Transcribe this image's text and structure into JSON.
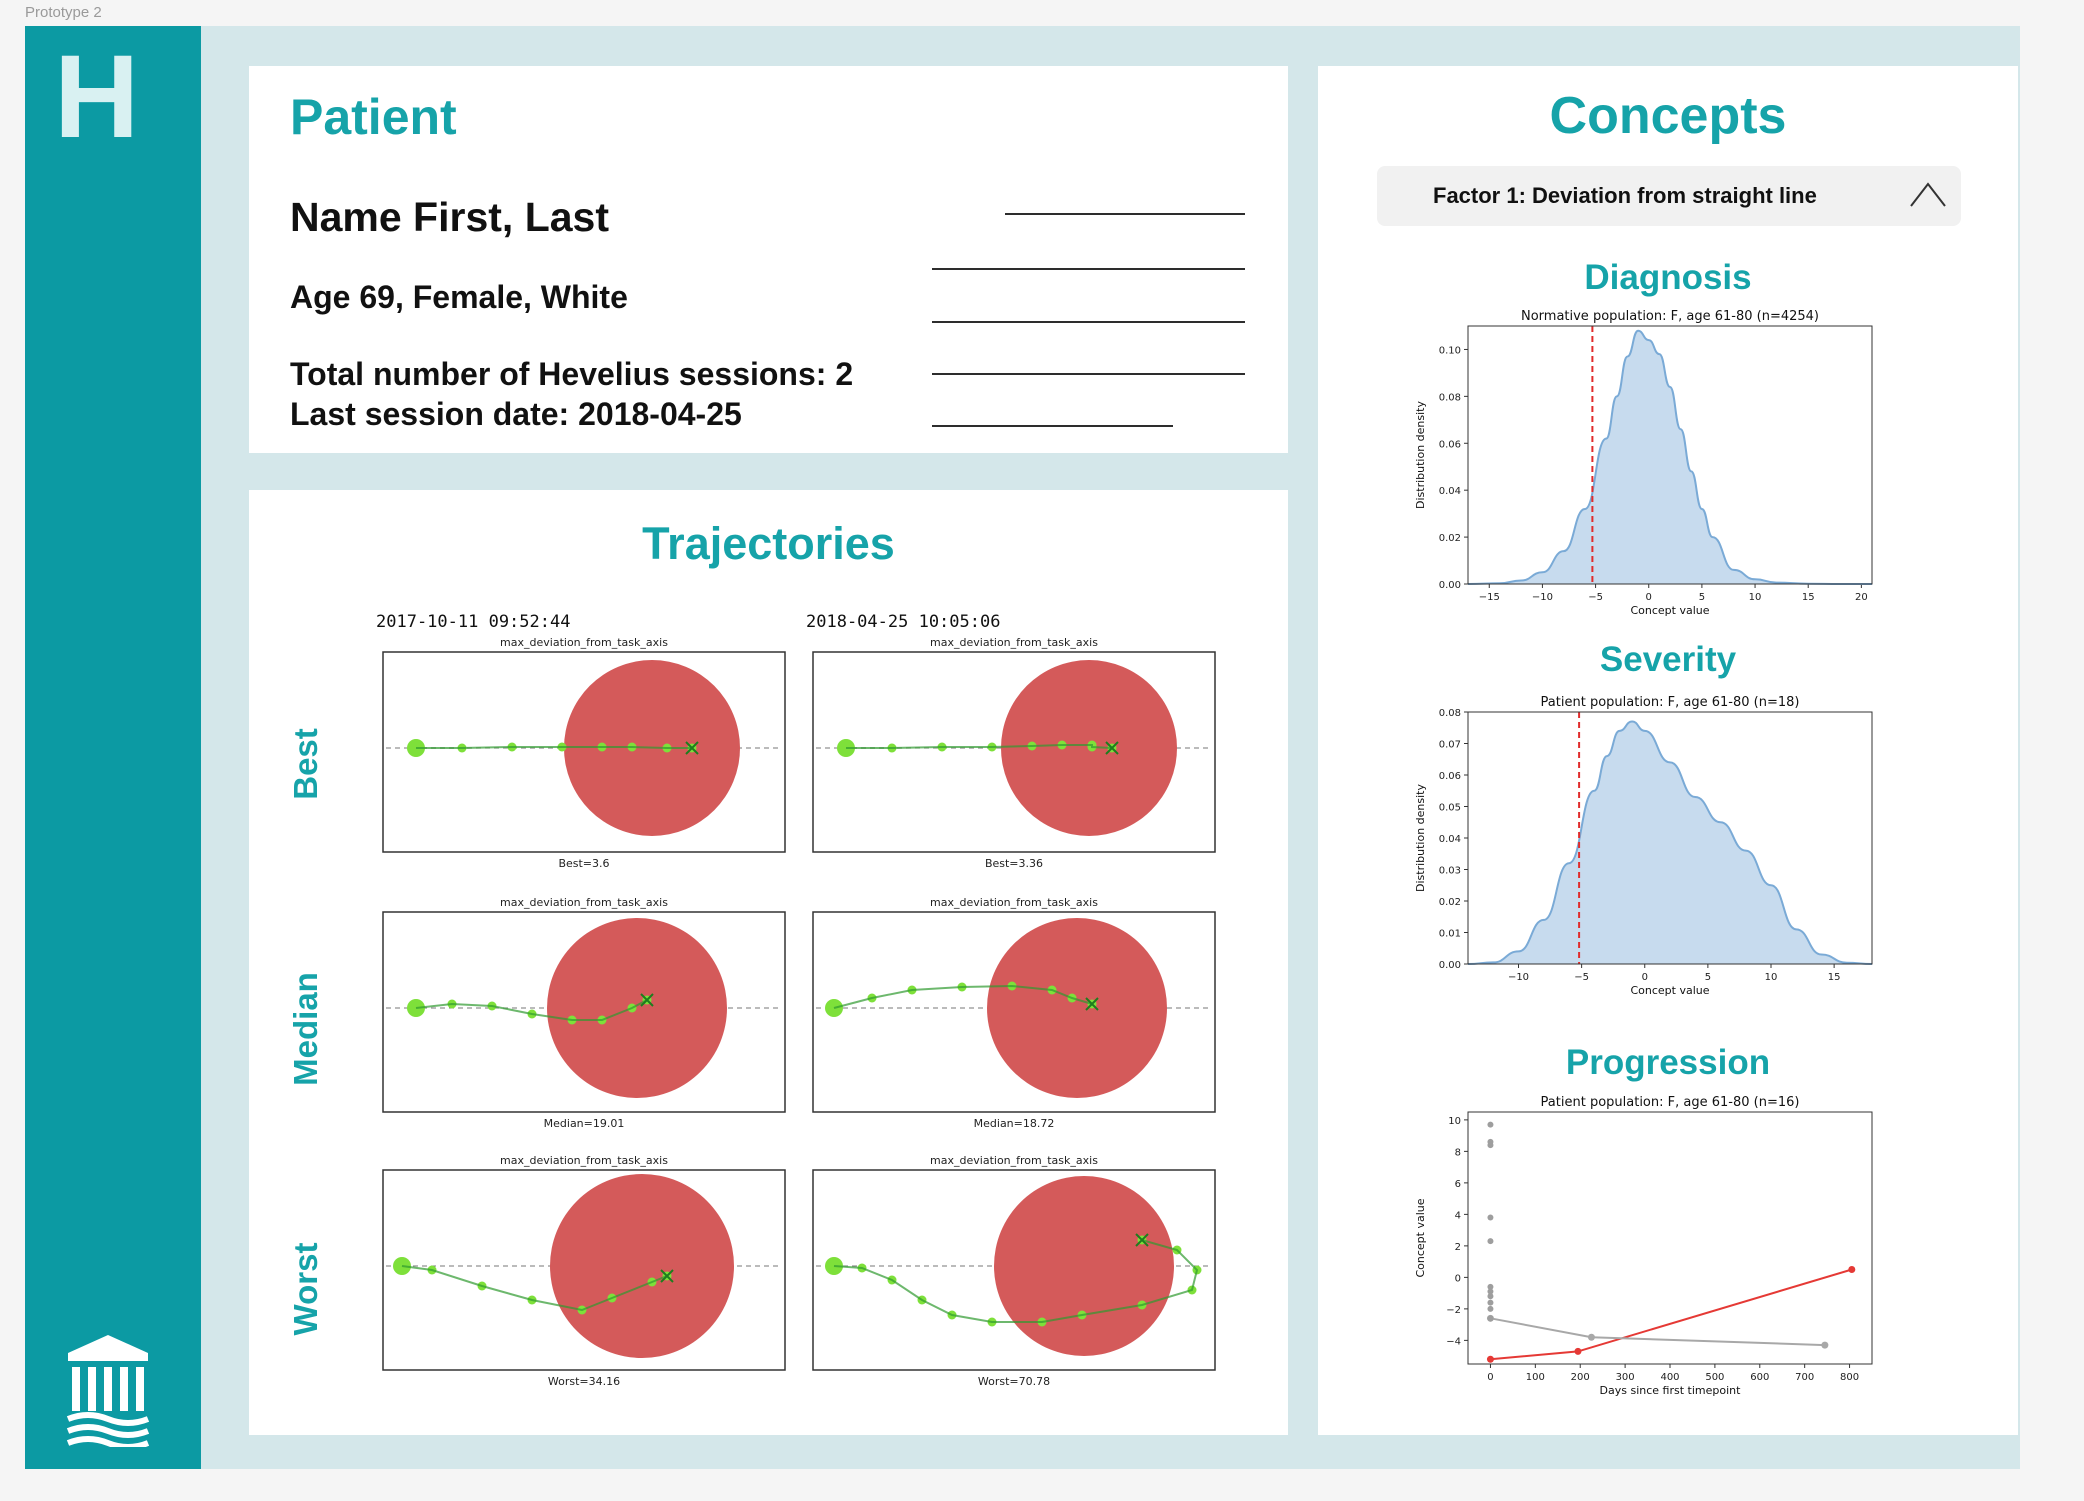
{
  "frame": {
    "label": "Prototype 2"
  },
  "brand": {
    "logo_letter": "H",
    "accent": "#0c9aa3",
    "title_color": "#16a3a9"
  },
  "patient": {
    "title": "Patient",
    "name": "Name First, Last",
    "demographics": "Age 69, Female, White",
    "sessions": "Total number of Hevelius sessions: 2",
    "last_session": "Last session date: 2018-04-25"
  },
  "trajectories": {
    "title": "Trajectories",
    "sessions": [
      "2017-10-11 09:52:44",
      "2018-04-25 10:05:06"
    ],
    "row_labels": [
      "Best",
      "Median",
      "Worst"
    ],
    "plot_title": "max_deviation_from_task_axis",
    "captions": [
      [
        "Best=3.6",
        "Best=3.36"
      ],
      [
        "Median=19.01",
        "Median=18.72"
      ],
      [
        "Worst=34.16",
        "Worst=70.78"
      ]
    ]
  },
  "concepts": {
    "title": "Concepts",
    "factor_label": "Factor 1: Deviation from straight line",
    "diagnosis_title": "Diagnosis",
    "severity_title": "Severity",
    "progression_title": "Progression"
  },
  "chart_data": [
    {
      "type": "area",
      "name": "diagnosis",
      "title": "Normative population: F, age 61-80 (n=4254)",
      "xlabel": "Concept value",
      "ylabel": "Distribution density",
      "xlim": [
        -17,
        21
      ],
      "ylim": [
        0,
        0.11
      ],
      "xticks": [
        -15,
        -10,
        -5,
        0,
        5,
        10,
        15,
        20
      ],
      "yticks": [
        0,
        0.02,
        0.04,
        0.06,
        0.08,
        0.1
      ],
      "ytick_labels": [
        "0.00",
        "0.02",
        "0.04",
        "0.06",
        "0.08",
        "0.10"
      ],
      "x": [
        -17,
        -14,
        -12,
        -10,
        -8,
        -6,
        -4,
        -3,
        -2,
        -1,
        0,
        1,
        2,
        3,
        4,
        5,
        6,
        8,
        10,
        12,
        15,
        18,
        21
      ],
      "y": [
        0,
        0.0003,
        0.0015,
        0.005,
        0.014,
        0.032,
        0.062,
        0.08,
        0.097,
        0.108,
        0.104,
        0.098,
        0.084,
        0.066,
        0.048,
        0.032,
        0.02,
        0.006,
        0.002,
        0.0006,
        0.0001,
        0,
        0
      ],
      "patient_value": -5.3,
      "fill": "#c7dbee",
      "line": "#7aaad6",
      "marker": "#e02b2b"
    },
    {
      "type": "area",
      "name": "severity",
      "title": "Patient population: F, age 61-80 (n=18)",
      "xlabel": "Concept value",
      "ylabel": "Distribution density",
      "xlim": [
        -14,
        18
      ],
      "ylim": [
        0,
        0.08
      ],
      "xticks": [
        -10,
        -5,
        0,
        5,
        10,
        15
      ],
      "yticks": [
        0,
        0.01,
        0.02,
        0.03,
        0.04,
        0.05,
        0.06,
        0.07,
        0.08
      ],
      "ytick_labels": [
        "0.00",
        "0.01",
        "0.02",
        "0.03",
        "0.04",
        "0.05",
        "0.06",
        "0.07",
        "0.08"
      ],
      "x": [
        -14,
        -12,
        -10,
        -8,
        -6,
        -4,
        -3,
        -2,
        -1,
        0,
        2,
        4,
        6,
        8,
        10,
        12,
        14,
        16,
        18
      ],
      "y": [
        0,
        0.0005,
        0.004,
        0.014,
        0.032,
        0.055,
        0.066,
        0.074,
        0.077,
        0.074,
        0.064,
        0.053,
        0.045,
        0.036,
        0.025,
        0.011,
        0.003,
        0.0004,
        0
      ],
      "patient_value": -5.2,
      "fill": "#c7dbee",
      "line": "#7aaad6",
      "marker": "#e02b2b"
    },
    {
      "type": "line",
      "name": "progression",
      "title": "Patient population: F, age 61-80 (n=16)",
      "xlabel": "Days since first timepoint",
      "ylabel": "Concept value",
      "xlim": [
        -50,
        850
      ],
      "ylim": [
        -5.5,
        10.5
      ],
      "xticks": [
        0,
        100,
        200,
        300,
        400,
        500,
        600,
        700,
        800
      ],
      "yticks": [
        -4,
        -2,
        0,
        2,
        4,
        6,
        8,
        10
      ],
      "series": [
        {
          "name": "patient",
          "color": "#e53935",
          "x": [
            0,
            195,
            805
          ],
          "y": [
            -5.2,
            -4.7,
            0.5
          ]
        },
        {
          "name": "population",
          "color": "#a8a8a8",
          "x": [
            0,
            225,
            745
          ],
          "y": [
            -2.6,
            -3.8,
            -4.3
          ]
        }
      ],
      "scatter": {
        "color": "#9e9e9e",
        "x": [
          0,
          0,
          0,
          0,
          0,
          0,
          0,
          0,
          0,
          0,
          0
        ],
        "y": [
          9.7,
          8.6,
          8.4,
          3.8,
          2.3,
          -0.6,
          -0.9,
          -1.2,
          -1.6,
          -2.0,
          -2.6
        ]
      }
    }
  ]
}
